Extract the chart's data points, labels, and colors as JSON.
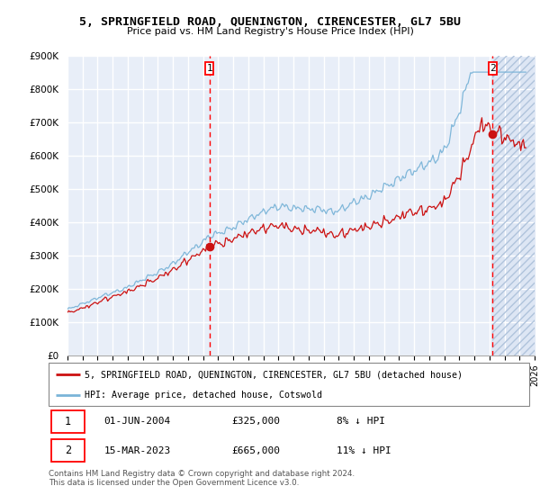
{
  "title": "5, SPRINGFIELD ROAD, QUENINGTON, CIRENCESTER, GL7 5BU",
  "subtitle": "Price paid vs. HM Land Registry's House Price Index (HPI)",
  "hpi_label": "HPI: Average price, detached house, Cotswold",
  "property_label": "5, SPRINGFIELD ROAD, QUENINGTON, CIRENCESTER, GL7 5BU (detached house)",
  "annotation1_date": "01-JUN-2004",
  "annotation1_price": "£325,000",
  "annotation1_hpi": "8% ↓ HPI",
  "annotation2_date": "15-MAR-2023",
  "annotation2_price": "£665,000",
  "annotation2_hpi": "11% ↓ HPI",
  "footer": "Contains HM Land Registry data © Crown copyright and database right 2024.\nThis data is licensed under the Open Government Licence v3.0.",
  "hpi_color": "#7ab4d8",
  "property_color": "#cc1111",
  "marker1_x_year": 2004.42,
  "marker2_x_year": 2023.21,
  "sale1_price": 325000,
  "sale2_price": 665000,
  "ylim": [
    0,
    900000
  ],
  "xlim_start": 1995,
  "xlim_end": 2026,
  "background_color": "#e8eef8",
  "hatch_start": 2023.21,
  "yticks": [
    0,
    100000,
    200000,
    300000,
    400000,
    500000,
    600000,
    700000,
    800000,
    900000
  ]
}
